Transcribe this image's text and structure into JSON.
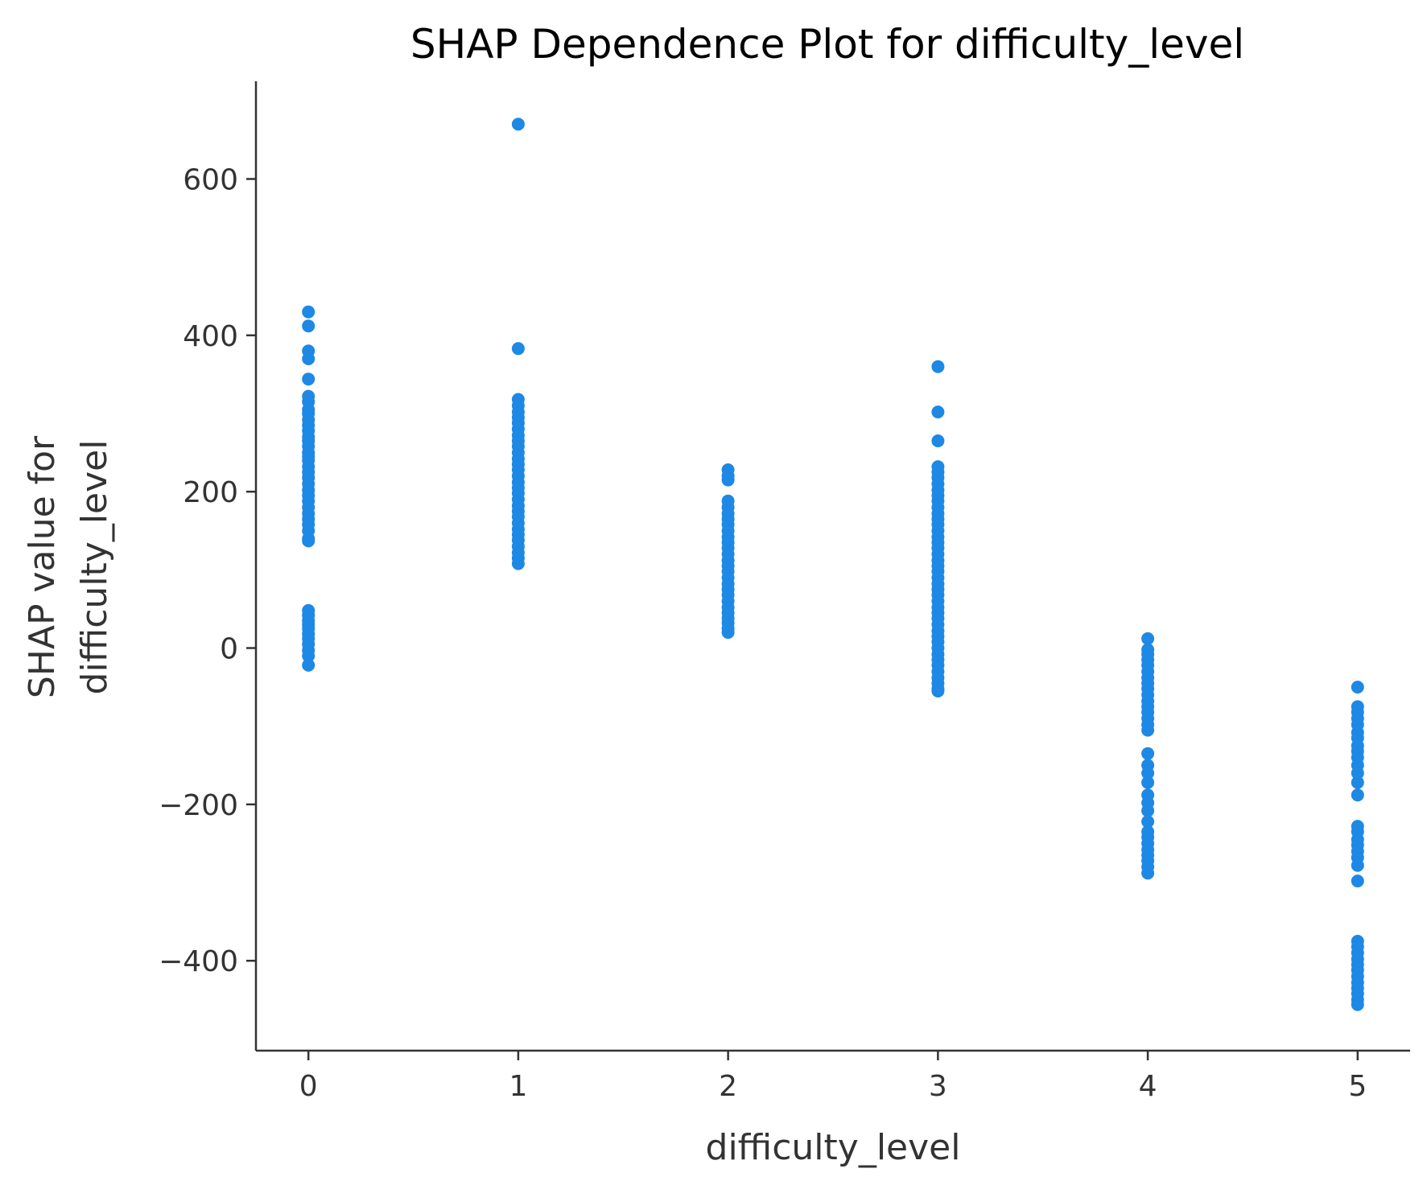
{
  "chart_data": {
    "type": "scatter",
    "title": "SHAP Dependence Plot for difficulty_level",
    "xlabel": "difficulty_level",
    "ylabel_lines": [
      "SHAP value for",
      "difficulty_level"
    ],
    "xlim": [
      -0.25,
      5.25
    ],
    "ylim": [
      -515,
      725
    ],
    "xticks": [
      0,
      1,
      2,
      3,
      4,
      5
    ],
    "yticks": [
      -400,
      -200,
      0,
      200,
      400,
      600
    ],
    "ytick_labels": [
      "−400",
      "−200",
      "0",
      "200",
      "400",
      "600"
    ],
    "grid": false,
    "marker_color": "#1E88E5",
    "points": [
      {
        "x": 0,
        "y": [
          430,
          412,
          380,
          370,
          344,
          322,
          315,
          305,
          300,
          292,
          285,
          278,
          270,
          265,
          258,
          250,
          245,
          240,
          232,
          225,
          218,
          210,
          202,
          195,
          188,
          180,
          172,
          165,
          158,
          150,
          140,
          137,
          48,
          42,
          35,
          30,
          25,
          18,
          12,
          5,
          -3,
          -10,
          -22
        ]
      },
      {
        "x": 1,
        "y": [
          670,
          383,
          318,
          310,
          302,
          295,
          288,
          280,
          272,
          265,
          258,
          250,
          242,
          235,
          228,
          220,
          212,
          205,
          198,
          190,
          182,
          175,
          168,
          160,
          152,
          145,
          138,
          130,
          122,
          115,
          108
        ]
      },
      {
        "x": 2,
        "y": [
          228,
          220,
          215,
          188,
          180,
          172,
          165,
          158,
          150,
          142,
          135,
          128,
          120,
          112,
          105,
          98,
          90,
          82,
          75,
          68,
          60,
          52,
          45,
          38,
          32,
          25,
          20
        ]
      },
      {
        "x": 3,
        "y": [
          360,
          302,
          265,
          232,
          225,
          218,
          210,
          202,
          195,
          188,
          180,
          172,
          165,
          158,
          150,
          142,
          135,
          128,
          120,
          112,
          105,
          98,
          90,
          82,
          75,
          68,
          60,
          52,
          45,
          38,
          30,
          22,
          15,
          8,
          0,
          -8,
          -15,
          -22,
          -30,
          -38,
          -45,
          -52,
          -55
        ]
      },
      {
        "x": 4,
        "y": [
          12,
          -2,
          -8,
          -15,
          -22,
          -30,
          -38,
          -45,
          -52,
          -60,
          -68,
          -75,
          -82,
          -90,
          -98,
          -105,
          -135,
          -150,
          -160,
          -172,
          -188,
          -198,
          -208,
          -222,
          -235,
          -242,
          -250,
          -258,
          -265,
          -272,
          -280,
          -288
        ]
      },
      {
        "x": 5,
        "y": [
          -50,
          -75,
          -82,
          -90,
          -98,
          -108,
          -115,
          -125,
          -132,
          -140,
          -150,
          -160,
          -172,
          -188,
          -228,
          -235,
          -245,
          -252,
          -260,
          -268,
          -278,
          -298,
          -375,
          -382,
          -390,
          -398,
          -405,
          -412,
          -420,
          -428,
          -435,
          -442,
          -450,
          -456
        ]
      }
    ]
  }
}
